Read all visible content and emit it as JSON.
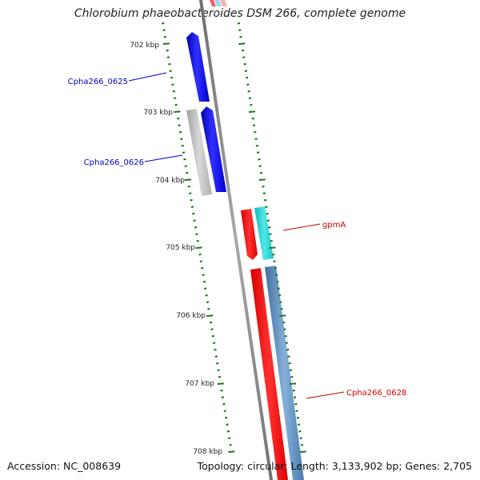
{
  "title": "Chlorobium phaeobacteroides DSM 266, complete genome",
  "footer": {
    "accession": "Accession: NC_008639",
    "summary": "Topology: circular; Length: 3,133,902 bp; Genes: 2,705"
  },
  "scale_labels": [
    "702 kbp",
    "703 kbp",
    "704 kbp",
    "705 kbp",
    "706 kbp",
    "707 kbp",
    "708 kbp"
  ],
  "gene_labels": [
    {
      "name": "Cpha266_0625",
      "color": "#0000cc"
    },
    {
      "name": "Cpha266_0626",
      "color": "#0000cc"
    },
    {
      "name": "gpmA",
      "color": "#cc0000"
    },
    {
      "name": "Cpha266_0628",
      "color": "#cc0000"
    }
  ],
  "colors": {
    "backbone": "#808080",
    "tick": "#1a7a1a",
    "blue_gene": "#0000ff",
    "grey_gene": "#b4b4b4",
    "red_gene": "#ff0000",
    "cyan_gene": "#1ecdcd",
    "steel_gene": "#4f84b8"
  }
}
